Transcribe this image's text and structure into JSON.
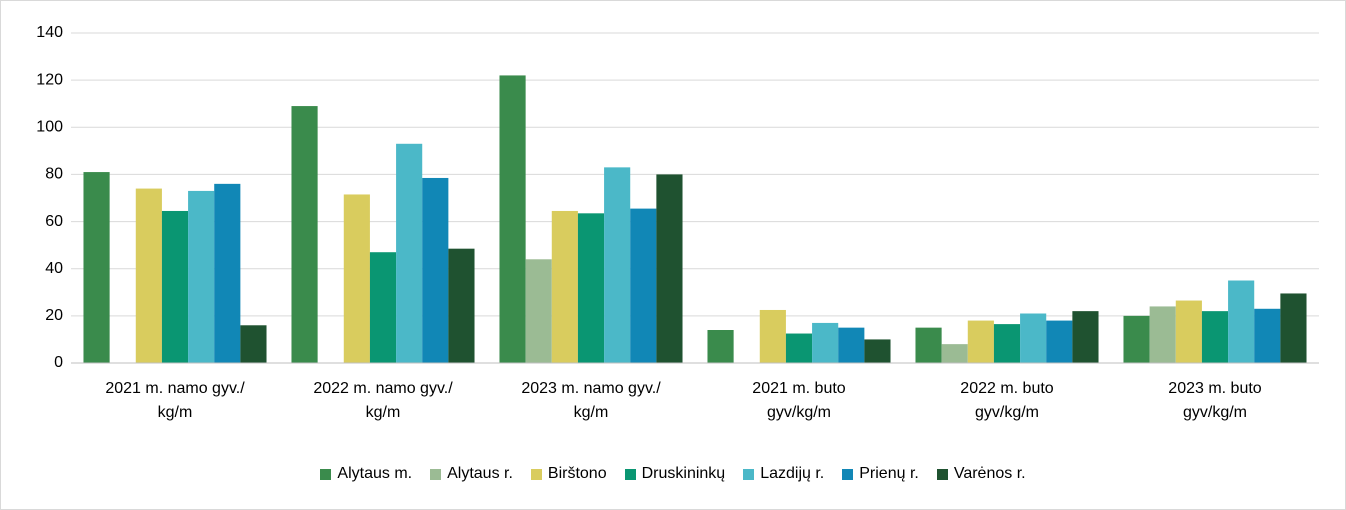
{
  "chart_data": {
    "type": "bar",
    "categories": [
      "2021 m. namo gyv./ kg/m",
      "2022 m. namo gyv./ kg/m",
      "2023 m. namo gyv./ kg/m",
      "2021 m. buto gyv/kg/m",
      "2022 m. buto gyv/kg/m",
      "2023 m. buto gyv/kg/m"
    ],
    "series": [
      {
        "name": "Alytaus m.",
        "color": "#3a8b4c",
        "values": [
          81,
          109,
          122,
          14,
          15,
          20
        ]
      },
      {
        "name": "Alytaus r.",
        "color": "#9bbb94",
        "values": [
          null,
          null,
          44,
          null,
          8,
          24
        ]
      },
      {
        "name": "Birštono",
        "color": "#d9cc5e",
        "values": [
          74,
          71.5,
          64.5,
          22.5,
          18,
          26.5
        ]
      },
      {
        "name": "Druskininkų",
        "color": "#0a9672",
        "values": [
          64.5,
          47,
          63.5,
          12.5,
          16.5,
          22
        ]
      },
      {
        "name": "Lazdijų r.",
        "color": "#4bb8c8",
        "values": [
          73,
          93,
          83,
          17,
          21,
          35
        ]
      },
      {
        "name": "Prienų r.",
        "color": "#1187b6",
        "values": [
          76,
          78.5,
          65.5,
          15,
          18,
          23
        ]
      },
      {
        "name": "Varėnos r.",
        "color": "#1f5230",
        "values": [
          16,
          48.5,
          80,
          10,
          22,
          29.5
        ]
      }
    ],
    "ylim": [
      0,
      140
    ],
    "yticks": [
      0,
      20,
      40,
      60,
      80,
      100,
      120,
      140
    ],
    "grid": true
  }
}
